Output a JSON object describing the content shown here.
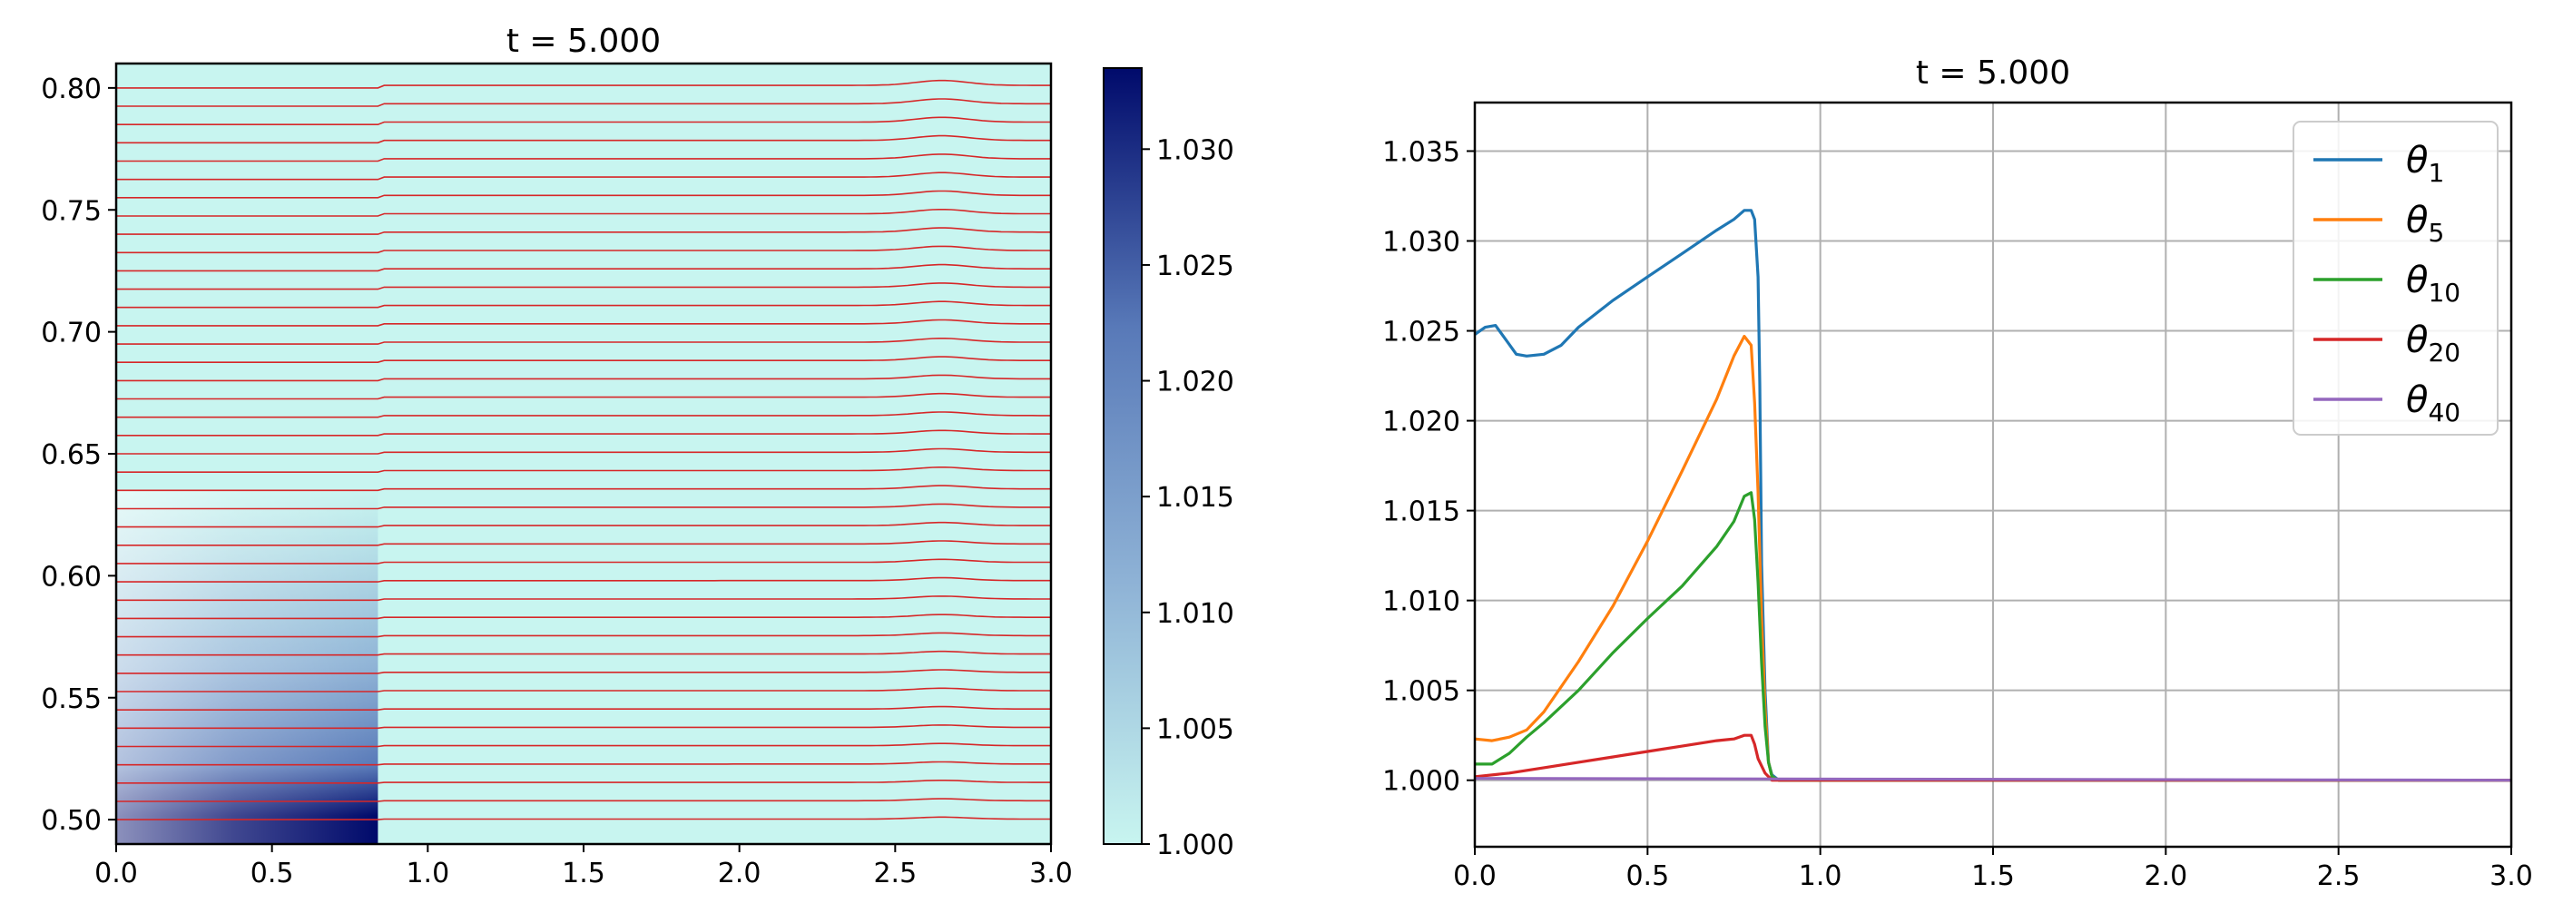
{
  "chart_data": [
    {
      "type": "heatmap",
      "title": "t = 5.000",
      "xlim": [
        0.0,
        3.0
      ],
      "ylim": [
        0.49,
        0.81
      ],
      "x_ticks": [
        "0.0",
        "0.5",
        "1.0",
        "1.5",
        "2.0",
        "2.5",
        "3.0"
      ],
      "y_ticks": [
        "0.50",
        "0.55",
        "0.60",
        "0.65",
        "0.70",
        "0.75",
        "0.80"
      ],
      "colorbar": {
        "range": [
          1.0,
          1.0335
        ],
        "ticks": [
          "1.000",
          "1.005",
          "1.010",
          "1.015",
          "1.020",
          "1.025",
          "1.030"
        ],
        "colormap": [
          "#c8f5f0",
          "#8fb3d6",
          "#5879b8",
          "#000a6b"
        ]
      },
      "field": {
        "front_x": 0.84,
        "low_value": 1.0,
        "bottom_value": 1.033,
        "top_of_signal_y": 0.635
      },
      "contour_lines": {
        "color": "#d62728",
        "count": 40,
        "y_min": 0.5,
        "y_max": 0.8,
        "front_x": 0.84,
        "bump_x": 2.65
      }
    },
    {
      "type": "line",
      "title": "t = 5.000",
      "xlim": [
        0.0,
        3.0
      ],
      "ylim": [
        0.9963,
        1.0377
      ],
      "x_ticks": [
        "0.0",
        "0.5",
        "1.0",
        "1.5",
        "2.0",
        "2.5",
        "3.0"
      ],
      "y_ticks": [
        "1.000",
        "1.005",
        "1.010",
        "1.015",
        "1.020",
        "1.025",
        "1.030",
        "1.035"
      ],
      "grid": true,
      "legend_position": "top-right",
      "series": [
        {
          "name": "θ",
          "sub": "1",
          "color": "#1f77b4",
          "x": [
            0.0,
            0.03,
            0.06,
            0.09,
            0.12,
            0.15,
            0.2,
            0.25,
            0.3,
            0.4,
            0.5,
            0.6,
            0.7,
            0.75,
            0.78,
            0.8,
            0.81,
            0.82,
            0.825,
            0.83,
            0.84,
            0.85,
            0.86,
            0.88,
            3.0
          ],
          "y": [
            1.0248,
            1.0252,
            1.0253,
            1.0245,
            1.0237,
            1.0236,
            1.0237,
            1.0242,
            1.0252,
            1.0267,
            1.028,
            1.0293,
            1.0306,
            1.0312,
            1.0317,
            1.0317,
            1.0312,
            1.028,
            1.022,
            1.012,
            1.005,
            1.001,
            1.0003,
            1.0,
            1.0
          ]
        },
        {
          "name": "θ",
          "sub": "5",
          "color": "#ff7f0e",
          "x": [
            0.0,
            0.05,
            0.1,
            0.15,
            0.2,
            0.3,
            0.4,
            0.5,
            0.6,
            0.7,
            0.75,
            0.78,
            0.8,
            0.81,
            0.82,
            0.83,
            0.84,
            0.85,
            0.86,
            0.88,
            3.0
          ],
          "y": [
            1.0023,
            1.0022,
            1.0024,
            1.0028,
            1.0038,
            1.0066,
            1.0097,
            1.0133,
            1.0172,
            1.0212,
            1.0236,
            1.0247,
            1.0242,
            1.021,
            1.016,
            1.009,
            1.004,
            1.001,
            1.0002,
            1.0,
            1.0
          ]
        },
        {
          "name": "θ",
          "sub": "10",
          "color": "#2ca02c",
          "x": [
            0.0,
            0.05,
            0.1,
            0.15,
            0.2,
            0.3,
            0.4,
            0.5,
            0.6,
            0.7,
            0.75,
            0.78,
            0.8,
            0.81,
            0.82,
            0.83,
            0.84,
            0.85,
            0.86,
            0.88,
            3.0
          ],
          "y": [
            1.0009,
            1.0009,
            1.0015,
            1.0024,
            1.0032,
            1.005,
            1.0071,
            1.009,
            1.0108,
            1.013,
            1.0144,
            1.0158,
            1.016,
            1.0145,
            1.011,
            1.0065,
            1.003,
            1.001,
            1.0002,
            1.0,
            1.0
          ]
        },
        {
          "name": "θ",
          "sub": "20",
          "color": "#d62728",
          "x": [
            0.0,
            0.1,
            0.2,
            0.3,
            0.4,
            0.5,
            0.6,
            0.7,
            0.75,
            0.78,
            0.8,
            0.81,
            0.82,
            0.84,
            0.86,
            3.0
          ],
          "y": [
            1.0002,
            1.0004,
            1.0007,
            1.001,
            1.0013,
            1.0016,
            1.0019,
            1.0022,
            1.0023,
            1.0025,
            1.0025,
            1.002,
            1.0012,
            1.0004,
            1.0,
            1.0
          ]
        },
        {
          "name": "θ",
          "sub": "40",
          "color": "#9467bd",
          "x": [
            0.0,
            3.0
          ],
          "y": [
            1.0001,
            1.0
          ]
        }
      ]
    }
  ]
}
